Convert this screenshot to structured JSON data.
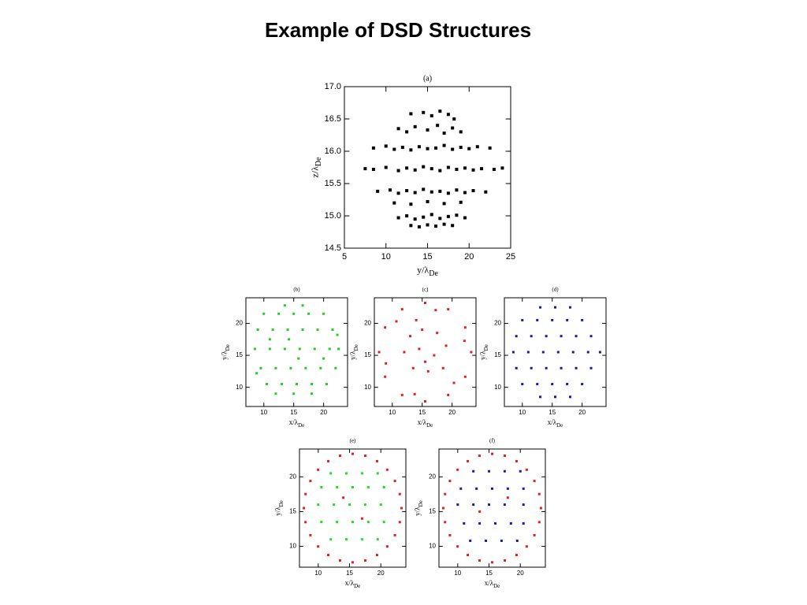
{
  "title": "Example of DSD Structures",
  "chart_data": [
    {
      "type": "scatter",
      "title": "(a)",
      "xlabel": "y/λ",
      "xlabel_sub": "De",
      "ylabel": "z/λ",
      "ylabel_sub": "De",
      "xlim": [
        5,
        25
      ],
      "xticks": [
        5,
        10,
        15,
        20,
        25
      ],
      "ylim": [
        14.5,
        17
      ],
      "yticks": [
        14.5,
        {
          "value": 15,
          "label": "15.0"
        },
        15.5,
        {
          "value": 16,
          "label": "16.0"
        },
        16.5,
        {
          "value": 17,
          "label": "17.0"
        }
      ],
      "series": [
        {
          "color": "#000000",
          "x": [
            13,
            14.5,
            15.5,
            16.5,
            17.5,
            18.2,
            11.5,
            12.5,
            13.5,
            15,
            16.2,
            17,
            18,
            19,
            8.5,
            10,
            11,
            12,
            13,
            14,
            15,
            16,
            17,
            18,
            19,
            20,
            21,
            22.5,
            7.5,
            8.5,
            10,
            11.5,
            12.5,
            13.5,
            14.5,
            15.5,
            16.5,
            17.5,
            18.5,
            19.5,
            20.5,
            21.5,
            23,
            24,
            9,
            10.5,
            11.5,
            12.5,
            13.5,
            14.5,
            15.5,
            16.5,
            17.5,
            18.5,
            19.5,
            20.5,
            22,
            11,
            13,
            15,
            17,
            19,
            11.5,
            12.5,
            13.5,
            14.5,
            15.5,
            16.5,
            17.5,
            18.5,
            19.5,
            13,
            14,
            15,
            16,
            17,
            18
          ],
          "y": [
            16.58,
            16.6,
            16.55,
            16.62,
            16.57,
            16.5,
            16.35,
            16.3,
            16.38,
            16.33,
            16.4,
            16.28,
            16.36,
            16.3,
            16.05,
            16.08,
            16.03,
            16.06,
            16.02,
            16.07,
            16.04,
            16.05,
            16.09,
            16.03,
            16.06,
            16.04,
            16.07,
            16.05,
            15.73,
            15.72,
            15.75,
            15.7,
            15.74,
            15.71,
            15.76,
            15.73,
            15.7,
            15.75,
            15.72,
            15.74,
            15.71,
            15.73,
            15.72,
            15.74,
            15.38,
            15.4,
            15.35,
            15.39,
            15.36,
            15.41,
            15.37,
            15.38,
            15.35,
            15.4,
            15.36,
            15.39,
            15.37,
            15.2,
            15.18,
            15.22,
            15.19,
            15.21,
            14.97,
            15,
            14.95,
            14.98,
            15.02,
            14.96,
            14.99,
            15.01,
            14.97,
            14.85,
            14.83,
            14.86,
            14.84,
            14.87,
            14.85
          ]
        }
      ]
    },
    {
      "type": "scatter",
      "title": "(b)",
      "xlabel": "x/λ",
      "xlabel_sub": "De",
      "ylabel": "y/λ",
      "ylabel_sub": "De",
      "xlim": [
        7,
        24
      ],
      "xticks": [
        10,
        15,
        20
      ],
      "ylim": [
        7,
        24
      ],
      "yticks": [
        10,
        15,
        20
      ],
      "series": [
        {
          "color": "#22cc22",
          "x": [
            10,
            12.5,
            15,
            17.5,
            20,
            9,
            11.5,
            14,
            16.5,
            19,
            21.5,
            8.5,
            11,
            13.5,
            16,
            18.5,
            21,
            22.5,
            9.5,
            12,
            14.5,
            17,
            19.5,
            22,
            10.5,
            13,
            15.5,
            18,
            20.5,
            12,
            15,
            18,
            13.5,
            16.5,
            11,
            20,
            8.8,
            22.3,
            15.8,
            14.2
          ],
          "y": [
            21.5,
            21.5,
            21.5,
            21.5,
            21.5,
            19,
            19,
            19,
            19,
            19,
            19,
            16,
            16,
            16,
            16,
            16,
            16,
            16,
            13,
            13,
            13,
            13,
            13,
            13,
            10.5,
            10.5,
            10.5,
            10.5,
            10.5,
            9,
            9,
            9,
            22.8,
            22.8,
            17.5,
            14.5,
            12.2,
            18.2,
            14.5,
            17.5
          ]
        }
      ]
    },
    {
      "type": "scatter",
      "title": "(c)",
      "xlabel": "x/λ",
      "xlabel_sub": "De",
      "ylabel": "y/λ",
      "ylabel_sub": "De",
      "xlim": [
        7,
        24
      ],
      "xticks": [
        10,
        15,
        20
      ],
      "ylim": [
        7,
        24
      ],
      "yticks": [
        10,
        15,
        20
      ],
      "series": [
        {
          "color": "#dd2222",
          "x": [
            23.2,
            22.2,
            19.35,
            15.5,
            11.65,
            8.8,
            7.8,
            8.8,
            11.65,
            15.5,
            19.35,
            22.2,
            22.07,
            17.26,
            10.69,
            8.93,
            13.74,
            20.31,
            13,
            15,
            17.5,
            12,
            14.5,
            17,
            19,
            13.5,
            16,
            18.5,
            15.5,
            14
          ],
          "y": [
            15.5,
            19.35,
            22.2,
            23.2,
            22.2,
            19.35,
            15.5,
            11.65,
            8.8,
            7.8,
            8.8,
            11.65,
            17.26,
            22.07,
            20.31,
            13.74,
            8.93,
            10.69,
            18,
            19,
            18.5,
            15.5,
            16,
            15,
            16.5,
            13,
            12.5,
            13,
            14,
            20.5
          ]
        }
      ]
    },
    {
      "type": "scatter",
      "title": "(d)",
      "xlabel": "x/λ",
      "xlabel_sub": "De",
      "ylabel": "y/λ",
      "ylabel_sub": "De",
      "xlim": [
        7,
        24
      ],
      "xticks": [
        10,
        15,
        20
      ],
      "ylim": [
        7,
        24
      ],
      "yticks": [
        10,
        15,
        20
      ],
      "series": [
        {
          "color": "#1a1aa0",
          "x": [
            13,
            15.5,
            18,
            10,
            12.5,
            15,
            17.5,
            20,
            9,
            11.5,
            14,
            16.5,
            19,
            21.5,
            8.5,
            11,
            13.5,
            16,
            18.5,
            21,
            23,
            9,
            11.5,
            14,
            16.5,
            19,
            21.5,
            10,
            12.5,
            15,
            17.5,
            20,
            13,
            15.5,
            18
          ],
          "y": [
            22.5,
            22.5,
            22.5,
            20.5,
            20.5,
            20.5,
            20.5,
            20.5,
            18,
            18,
            18,
            18,
            18,
            18,
            15.5,
            15.5,
            15.5,
            15.5,
            15.5,
            15.5,
            15.5,
            13,
            13,
            13,
            13,
            13,
            13,
            10.5,
            10.5,
            10.5,
            10.5,
            10.5,
            8.5,
            8.5,
            8.5
          ]
        }
      ]
    },
    {
      "type": "scatter",
      "title": "(e)",
      "xlabel": "x/λ",
      "xlabel_sub": "De",
      "ylabel": "y/λ",
      "ylabel_sub": "De",
      "xlim": [
        7,
        24
      ],
      "xticks": [
        10,
        15,
        20
      ],
      "ylim": [
        7,
        24
      ],
      "yticks": [
        10,
        15,
        20
      ],
      "series": [
        {
          "color": "#dd2222",
          "x": [
            23.3,
            22.25,
            19.4,
            15.5,
            11.6,
            8.75,
            7.7,
            8.75,
            11.6,
            15.5,
            19.4,
            22.25,
            23.03,
            21.02,
            17.52,
            13.48,
            9.98,
            7.97,
            7.97,
            9.98,
            13.48,
            17.52,
            21.02,
            23.03,
            14,
            17
          ],
          "y": [
            15.5,
            19.4,
            22.25,
            23.3,
            22.25,
            19.4,
            15.5,
            11.6,
            8.75,
            7.7,
            8.75,
            11.6,
            17.52,
            21.02,
            23.03,
            23.03,
            21.02,
            17.52,
            13.48,
            9.98,
            7.97,
            7.97,
            9.98,
            13.48,
            17,
            14
          ]
        },
        {
          "color": "#22dd22",
          "x": [
            12,
            14.5,
            17,
            19.5,
            10.5,
            13,
            15.5,
            18,
            20.5,
            10,
            12.5,
            15,
            17.5,
            20,
            10.5,
            13,
            15.5,
            18,
            20.5,
            12,
            14.5,
            17,
            19.5
          ],
          "y": [
            20.5,
            20.5,
            20.5,
            20.5,
            18.5,
            18.5,
            18.5,
            18.5,
            18.5,
            16,
            16,
            16,
            16,
            16,
            13.5,
            13.5,
            13.5,
            13.5,
            13.5,
            11,
            11,
            11,
            11
          ]
        }
      ]
    },
    {
      "type": "scatter",
      "title": "(f)",
      "xlabel": "x/λ",
      "xlabel_sub": "De",
      "ylabel": "y/λ",
      "ylabel_sub": "De",
      "xlim": [
        7,
        24
      ],
      "xticks": [
        10,
        15,
        20
      ],
      "ylim": [
        7,
        24
      ],
      "yticks": [
        10,
        15,
        20
      ],
      "series": [
        {
          "color": "#dd2222",
          "x": [
            23.3,
            22.25,
            19.4,
            15.5,
            11.6,
            8.75,
            7.7,
            8.75,
            11.6,
            15.5,
            19.4,
            22.25,
            23.03,
            21.02,
            17.52,
            13.48,
            9.98,
            7.97,
            7.97,
            9.98,
            13.48,
            17.52,
            21.02,
            23.03,
            13.5,
            18
          ],
          "y": [
            15.5,
            19.4,
            22.25,
            23.3,
            22.25,
            19.4,
            15.5,
            11.6,
            8.75,
            7.7,
            8.75,
            11.6,
            17.52,
            21.02,
            23.03,
            23.03,
            21.02,
            17.52,
            13.48,
            9.98,
            7.97,
            7.97,
            9.98,
            13.48,
            15,
            17
          ]
        },
        {
          "color": "#1a1aa0",
          "x": [
            12.5,
            15,
            17.5,
            20,
            10.5,
            13,
            15.5,
            18,
            20.5,
            10,
            12.5,
            15,
            17.5,
            20.5,
            11,
            13.5,
            16,
            18.5,
            20.5,
            12,
            14.5,
            17,
            19.5
          ],
          "y": [
            20.8,
            20.8,
            20.8,
            20.8,
            18.3,
            18.3,
            18.3,
            18.3,
            18.3,
            16,
            16,
            16,
            16,
            16,
            13.3,
            13.3,
            13.3,
            13.3,
            13.3,
            10.8,
            10.8,
            10.8,
            10.8
          ]
        }
      ]
    }
  ]
}
